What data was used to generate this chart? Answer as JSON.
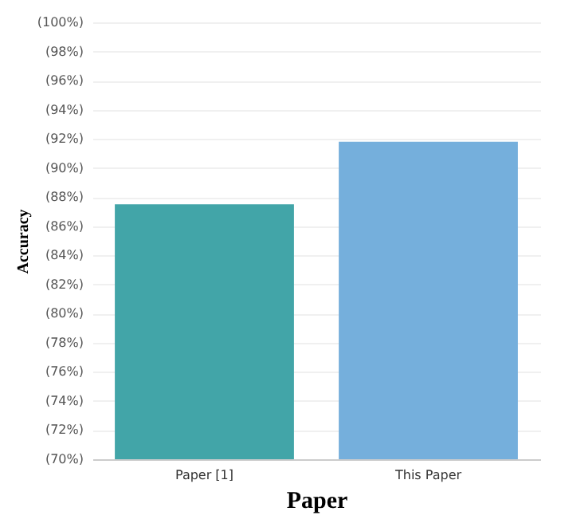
{
  "chart_data": {
    "type": "bar",
    "xlabel": "Paper",
    "ylabel": "Accuracy",
    "categories": [
      "Paper [1]",
      "This Paper"
    ],
    "values": [
      87.5,
      91.8
    ],
    "colors": [
      "#42a5a8",
      "#75afdc"
    ],
    "ylim": [
      70,
      100
    ],
    "yticks": [
      {
        "value": 70,
        "label": "(70%)"
      },
      {
        "value": 72,
        "label": "(72%)"
      },
      {
        "value": 74,
        "label": "(74%)"
      },
      {
        "value": 76,
        "label": "(76%)"
      },
      {
        "value": 78,
        "label": "(78%)"
      },
      {
        "value": 80,
        "label": "(80%)"
      },
      {
        "value": 82,
        "label": "(82%)"
      },
      {
        "value": 84,
        "label": "(84%)"
      },
      {
        "value": 86,
        "label": "(86%)"
      },
      {
        "value": 88,
        "label": "(88%)"
      },
      {
        "value": 90,
        "label": "(90%)"
      },
      {
        "value": 92,
        "label": "(92%)"
      },
      {
        "value": 94,
        "label": "(94%)"
      },
      {
        "value": 96,
        "label": "(96%)"
      },
      {
        "value": 98,
        "label": "(98%)"
      },
      {
        "value": 100,
        "label": "(100%)"
      }
    ],
    "grid": "y"
  }
}
